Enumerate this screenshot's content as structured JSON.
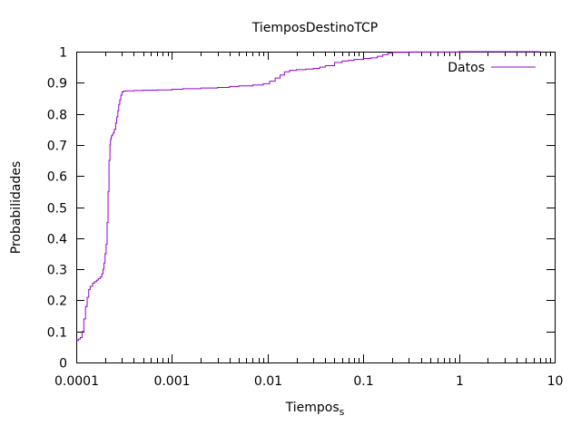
{
  "chart_data": {
    "type": "line",
    "title": "TiemposDestinoTCP",
    "xlabel_main": "Tiempos",
    "xlabel_sub": "s",
    "ylabel": "Probabilidades",
    "x_scale": "log",
    "xlim": [
      0.0001,
      10
    ],
    "ylim": [
      0,
      1
    ],
    "x_ticks": [
      {
        "value": 0.0001,
        "label": "0.0001"
      },
      {
        "value": 0.001,
        "label": "0.001"
      },
      {
        "value": 0.01,
        "label": "0.01"
      },
      {
        "value": 0.1,
        "label": "0.1"
      },
      {
        "value": 1,
        "label": "1"
      },
      {
        "value": 10,
        "label": "10"
      }
    ],
    "y_ticks": [
      {
        "value": 0,
        "label": "0"
      },
      {
        "value": 0.1,
        "label": "0.1"
      },
      {
        "value": 0.2,
        "label": "0.2"
      },
      {
        "value": 0.3,
        "label": "0.3"
      },
      {
        "value": 0.4,
        "label": "0.4"
      },
      {
        "value": 0.5,
        "label": "0.5"
      },
      {
        "value": 0.6,
        "label": "0.6"
      },
      {
        "value": 0.7,
        "label": "0.7"
      },
      {
        "value": 0.8,
        "label": "0.8"
      },
      {
        "value": 0.9,
        "label": "0.9"
      },
      {
        "value": 1,
        "label": "1"
      }
    ],
    "grid": false,
    "legend_position": "top-right",
    "series": [
      {
        "name": "Datos",
        "color": "#9400d3",
        "x": [
          0.0001,
          0.000105,
          0.00011,
          0.000115,
          0.00012,
          0.000125,
          0.00013,
          0.000135,
          0.00014,
          0.000148,
          0.000155,
          0.000163,
          0.00017,
          0.000178,
          0.000185,
          0.00019,
          0.000195,
          0.0002,
          0.000205,
          0.00021,
          0.000215,
          0.00022,
          0.000225,
          0.000228,
          0.00023,
          0.000232,
          0.000234,
          0.000236,
          0.00024,
          0.000245,
          0.00025,
          0.000258,
          0.000265,
          0.000272,
          0.000278,
          0.000285,
          0.000292,
          0.0003,
          0.000308,
          0.000315,
          0.000322,
          0.00033,
          0.00035,
          0.0004,
          0.0005,
          0.0007,
          0.001,
          0.0013,
          0.002,
          0.003,
          0.004,
          0.005,
          0.007,
          0.009,
          0.0105,
          0.012,
          0.0135,
          0.015,
          0.017,
          0.02,
          0.025,
          0.03,
          0.035,
          0.04,
          0.05,
          0.06,
          0.07,
          0.08,
          0.1,
          0.12,
          0.14,
          0.16,
          0.18,
          0.2,
          0.3,
          0.5,
          1.0,
          2.0,
          4.0,
          7.0
        ],
        "y": [
          0.07,
          0.075,
          0.08,
          0.1,
          0.14,
          0.18,
          0.21,
          0.235,
          0.245,
          0.255,
          0.26,
          0.265,
          0.27,
          0.275,
          0.285,
          0.3,
          0.32,
          0.35,
          0.38,
          0.45,
          0.55,
          0.65,
          0.7,
          0.715,
          0.72,
          0.725,
          0.73,
          0.73,
          0.735,
          0.74,
          0.75,
          0.77,
          0.79,
          0.81,
          0.83,
          0.845,
          0.86,
          0.87,
          0.872,
          0.873,
          0.873,
          0.874,
          0.874,
          0.875,
          0.876,
          0.877,
          0.879,
          0.881,
          0.883,
          0.885,
          0.888,
          0.89,
          0.893,
          0.897,
          0.905,
          0.915,
          0.925,
          0.935,
          0.94,
          0.942,
          0.944,
          0.946,
          0.95,
          0.955,
          0.965,
          0.97,
          0.972,
          0.975,
          0.978,
          0.98,
          0.985,
          0.99,
          0.995,
          0.998,
          0.999,
          0.999,
          1.0,
          1.0,
          1.0,
          1.0
        ]
      }
    ]
  }
}
